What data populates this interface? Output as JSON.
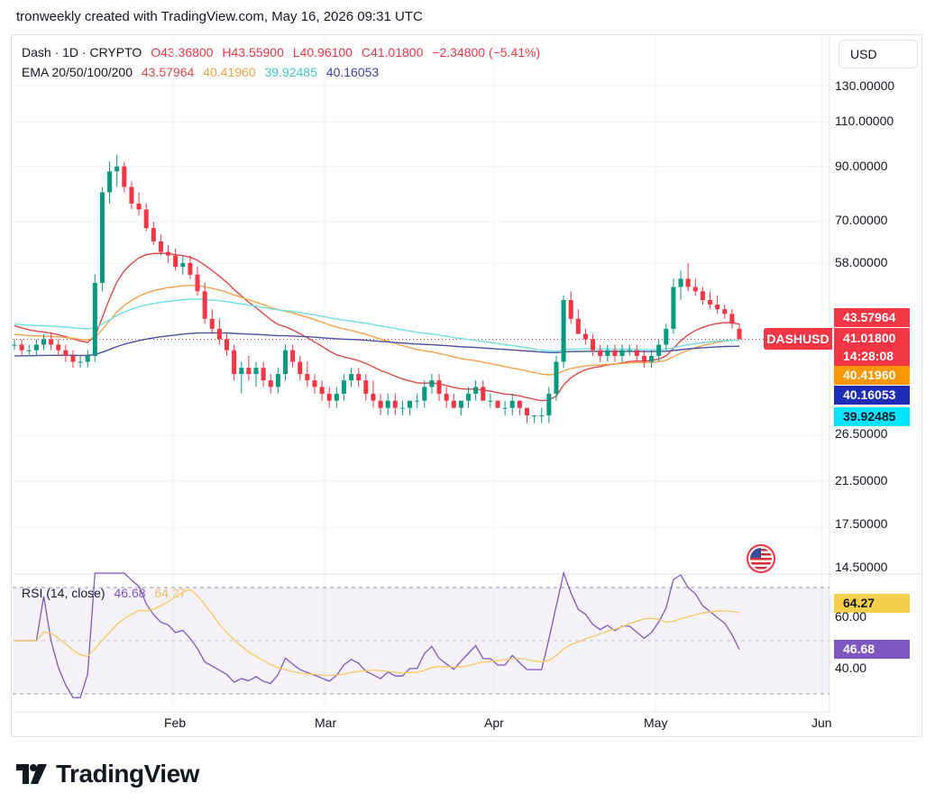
{
  "header": {
    "text": "tronweekly created with TradingView.com, May 16, 2026 09:31 UTC"
  },
  "currency_button": "USD",
  "legend": {
    "symbol": "Dash · 1D · CRYPTO",
    "open": "O43.36800",
    "high": "H43.55900",
    "low": "L40.96100",
    "close": "C41.01800",
    "change": "−2.34800 (−5.41%)",
    "ema_label": "EMA 20/50/100/200",
    "ema20": "43.57964",
    "ema50": "40.41960",
    "ema100": "39.92485",
    "ema200": "40.16053",
    "rsi_label": "RSI (14, close)",
    "rsi_value": "46.68",
    "rsi_ma": "64.27"
  },
  "colors": {
    "up": "#089981",
    "down": "#f23645",
    "ema20": "#e0494a",
    "ema50": "#f5a14a",
    "ema100": "#6ee1e6",
    "ema200": "#4a4fa0",
    "rsi": "#7e57c2",
    "rsi_ma": "#f6c85f"
  },
  "price_axis": {
    "ticks": [
      "130.00000",
      "110.00000",
      "90.00000",
      "70.00000",
      "58.00000",
      "26.50000",
      "21.50000",
      "17.50000",
      "14.50000"
    ]
  },
  "price_tags": {
    "ema20": "43.57964",
    "symbol_tag": "DASHUSD",
    "last_price": "41.01800",
    "countdown": "14:28:08",
    "ema50": "40.41960",
    "ema200": "40.16053",
    "ema100": "39.92485"
  },
  "rsi_axis": {
    "ticks": [
      "60.00",
      "40.00"
    ],
    "ma_tag": "64.27",
    "value_tag": "46.68"
  },
  "time_axis": [
    "Feb",
    "Mar",
    "Apr",
    "May",
    "Jun"
  ],
  "brand": "TradingView",
  "chart_data": {
    "type": "candlestick",
    "scale": "log",
    "ylim": [
      14.5,
      130
    ],
    "candles": [
      [
        40,
        41,
        39,
        40
      ],
      [
        40,
        41,
        38,
        39
      ],
      [
        39,
        40,
        38,
        39
      ],
      [
        39,
        41,
        38,
        40
      ],
      [
        40,
        42,
        39,
        41
      ],
      [
        41,
        42,
        39,
        40
      ],
      [
        40,
        41,
        38,
        39
      ],
      [
        39,
        40,
        37,
        38
      ],
      [
        38,
        39,
        36,
        37
      ],
      [
        37,
        38,
        36,
        37
      ],
      [
        37,
        39,
        36,
        38
      ],
      [
        38,
        55,
        37,
        53
      ],
      [
        53,
        82,
        51,
        80
      ],
      [
        80,
        92,
        76,
        88
      ],
      [
        88,
        95,
        82,
        90
      ],
      [
        90,
        92,
        80,
        82
      ],
      [
        82,
        84,
        74,
        76
      ],
      [
        76,
        80,
        72,
        74
      ],
      [
        74,
        76,
        67,
        68
      ],
      [
        68,
        70,
        63,
        64
      ],
      [
        64,
        66,
        60,
        61
      ],
      [
        61,
        63,
        58,
        60
      ],
      [
        60,
        62,
        56,
        57
      ],
      [
        57,
        60,
        55,
        58
      ],
      [
        58,
        60,
        54,
        55
      ],
      [
        55,
        57,
        50,
        51
      ],
      [
        51,
        53,
        44,
        45
      ],
      [
        45,
        47,
        42,
        43
      ],
      [
        43,
        45,
        40,
        41
      ],
      [
        41,
        42,
        38,
        39
      ],
      [
        39,
        40,
        34,
        35
      ],
      [
        35,
        37,
        32,
        36
      ],
      [
        36,
        38,
        34,
        35
      ],
      [
        35,
        37,
        33,
        36
      ],
      [
        36,
        37,
        33,
        34
      ],
      [
        34,
        35,
        32,
        33
      ],
      [
        33,
        36,
        32,
        35
      ],
      [
        35,
        40,
        34,
        39
      ],
      [
        39,
        40,
        36,
        37
      ],
      [
        37,
        38,
        34,
        35
      ],
      [
        35,
        37,
        33,
        34
      ],
      [
        34,
        35,
        32,
        33
      ],
      [
        33,
        34,
        31,
        32
      ],
      [
        32,
        33,
        30,
        31
      ],
      [
        31,
        33,
        30,
        32
      ],
      [
        32,
        35,
        31,
        34
      ],
      [
        34,
        36,
        33,
        35
      ],
      [
        35,
        36,
        33,
        34
      ],
      [
        34,
        35,
        31,
        32
      ],
      [
        32,
        34,
        30,
        31
      ],
      [
        31,
        32,
        29,
        30
      ],
      [
        30,
        32,
        29,
        31
      ],
      [
        31,
        32,
        29,
        30
      ],
      [
        30,
        31,
        29,
        30
      ],
      [
        30,
        31,
        29,
        31
      ],
      [
        31,
        32,
        30,
        31
      ],
      [
        31,
        34,
        30,
        33
      ],
      [
        33,
        35,
        32,
        34
      ],
      [
        34,
        35,
        31,
        32
      ],
      [
        32,
        33,
        30,
        31
      ],
      [
        31,
        32,
        30,
        30
      ],
      [
        30,
        31,
        29,
        31
      ],
      [
        31,
        33,
        30,
        32
      ],
      [
        32,
        34,
        31,
        33
      ],
      [
        33,
        34,
        31,
        31
      ],
      [
        31,
        32,
        30,
        31
      ],
      [
        31,
        31,
        30,
        30
      ],
      [
        30,
        31,
        29,
        30
      ],
      [
        30,
        32,
        29,
        31
      ],
      [
        31,
        31,
        29,
        30
      ],
      [
        30,
        30,
        28,
        29
      ],
      [
        29,
        29,
        28,
        29
      ],
      [
        29,
        30,
        28,
        29
      ],
      [
        29,
        33,
        28,
        32
      ],
      [
        32,
        38,
        31,
        37
      ],
      [
        37,
        50,
        36,
        49
      ],
      [
        49,
        51,
        44,
        45
      ],
      [
        45,
        47,
        42,
        42
      ],
      [
        42,
        43,
        40,
        41
      ],
      [
        41,
        42,
        38,
        39
      ],
      [
        39,
        40,
        37,
        38
      ],
      [
        38,
        40,
        37,
        39
      ],
      [
        39,
        40,
        37,
        38
      ],
      [
        38,
        40,
        37,
        39
      ],
      [
        39,
        40,
        38,
        39
      ],
      [
        39,
        40,
        37,
        38
      ],
      [
        38,
        39,
        36,
        37
      ],
      [
        37,
        39,
        36,
        38
      ],
      [
        38,
        41,
        37,
        40
      ],
      [
        40,
        44,
        39,
        43
      ],
      [
        43,
        54,
        42,
        52
      ],
      [
        52,
        56,
        49,
        54
      ],
      [
        54,
        58,
        51,
        52
      ],
      [
        52,
        54,
        50,
        51
      ],
      [
        51,
        52,
        48,
        49
      ],
      [
        49,
        51,
        47,
        48
      ],
      [
        48,
        50,
        46,
        47
      ],
      [
        47,
        48,
        45,
        46
      ],
      [
        46,
        47,
        43,
        44
      ],
      [
        43,
        44,
        41,
        41
      ]
    ],
    "ema": [
      {
        "name": "EMA 20",
        "last": 43.57964
      },
      {
        "name": "EMA 50",
        "last": 40.4196
      },
      {
        "name": "EMA 100",
        "last": 39.92485
      },
      {
        "name": "EMA 200",
        "last": 40.16053
      }
    ],
    "rsi": {
      "ylim": [
        20,
        80
      ],
      "upper_band": 70,
      "lower_band": 30,
      "last": 46.68,
      "ma_last": 64.27
    },
    "x_ticks": [
      "Feb",
      "Mar",
      "Apr",
      "May",
      "Jun"
    ]
  }
}
